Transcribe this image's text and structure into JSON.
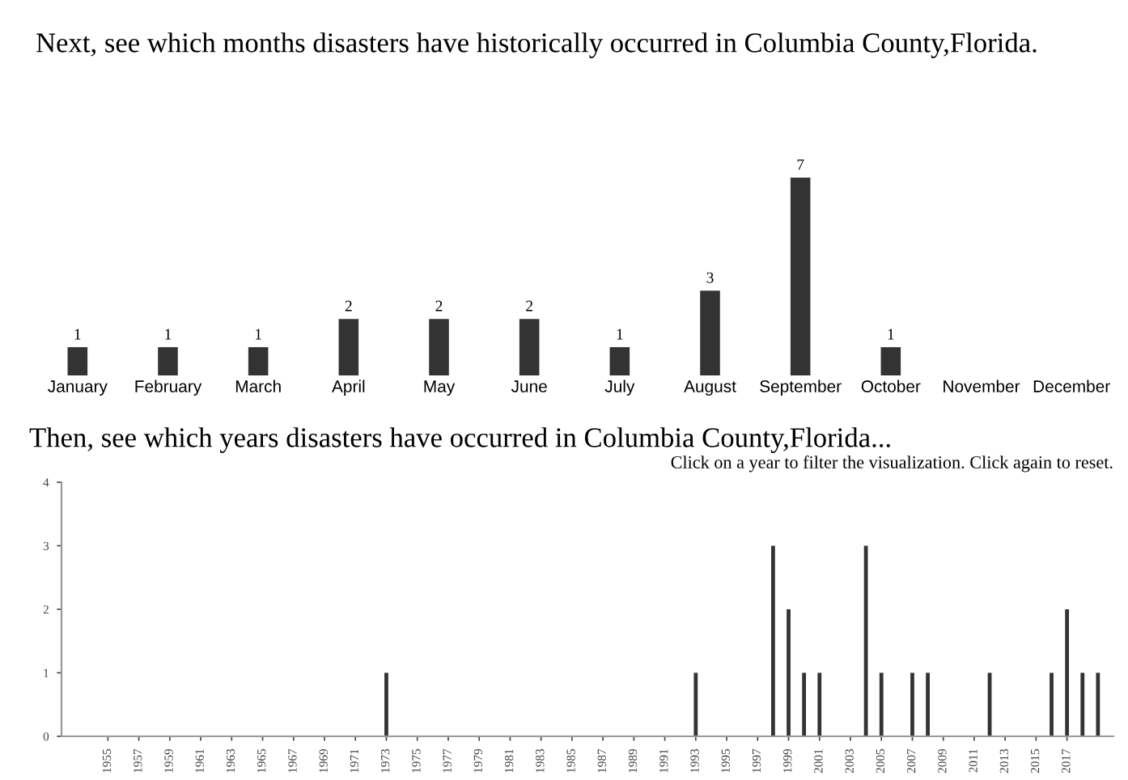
{
  "chart_data": [
    {
      "type": "bar",
      "title": "Next, see which months disasters have historically occurred in Columbia County,Florida.",
      "categories": [
        "January",
        "February",
        "March",
        "April",
        "May",
        "June",
        "July",
        "August",
        "September",
        "October",
        "November",
        "December"
      ],
      "values": [
        1,
        1,
        1,
        2,
        2,
        2,
        1,
        3,
        7,
        1,
        0,
        0
      ],
      "color": "#333333",
      "value_labels": [
        "1",
        "1",
        "1",
        "2",
        "2",
        "2",
        "1",
        "3",
        "7",
        "1",
        null,
        null
      ]
    },
    {
      "type": "bar",
      "title": "Then, see which years disasters have occurred in Columbia County,Florida...",
      "annotations": [
        "Click on a year to filter the visualization. Click again to reset."
      ],
      "x": [
        1973,
        1993,
        1998,
        1999,
        2000,
        2001,
        2004,
        2005,
        2007,
        2008,
        2012,
        2016,
        2017,
        2018,
        2019
      ],
      "values": [
        1,
        1,
        3,
        2,
        1,
        1,
        3,
        1,
        1,
        1,
        1,
        1,
        2,
        1,
        1
      ],
      "color": "#333333",
      "xlim": [
        1952,
        2020
      ],
      "xticks": [
        1955,
        1957,
        1959,
        1961,
        1963,
        1965,
        1967,
        1969,
        1971,
        1973,
        1975,
        1977,
        1979,
        1981,
        1983,
        1985,
        1987,
        1989,
        1991,
        1993,
        1995,
        1997,
        1999,
        2001,
        2003,
        2005,
        2007,
        2009,
        2011,
        2013,
        2015,
        2017
      ],
      "ylim": [
        0,
        4
      ],
      "yticks": [
        0,
        1,
        2,
        3,
        4
      ],
      "grid": false
    }
  ]
}
